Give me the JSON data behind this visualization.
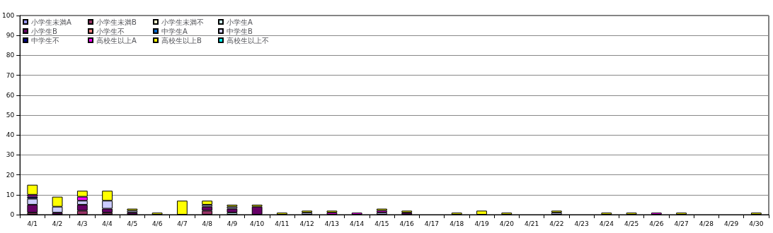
{
  "chart_data": {
    "type": "bar",
    "stacked": true,
    "categories": [
      "4/1",
      "4/2",
      "4/3",
      "4/4",
      "4/5",
      "4/6",
      "4/7",
      "4/8",
      "4/9",
      "4/10",
      "4/11",
      "4/12",
      "4/13",
      "4/14",
      "4/15",
      "4/16",
      "4/17",
      "4/18",
      "4/19",
      "4/20",
      "4/21",
      "4/22",
      "4/23",
      "4/24",
      "4/25",
      "4/26",
      "4/27",
      "4/28",
      "4/29",
      "4/30"
    ],
    "ylim": [
      0,
      100
    ],
    "yticks": [
      0,
      10,
      20,
      30,
      40,
      50,
      60,
      70,
      80,
      90,
      100
    ],
    "grid": "y",
    "legend": "top left",
    "series": [
      {
        "name": "小学生未満A",
        "color": "#9999ff",
        "values": [
          0,
          0,
          0,
          0,
          0,
          0,
          0,
          0,
          0,
          0,
          0,
          0,
          0,
          0,
          0,
          0,
          0,
          0,
          0,
          0,
          0,
          0,
          0,
          0,
          0,
          0,
          0,
          0,
          0,
          0
        ]
      },
      {
        "name": "小学生未満B",
        "color": "#993366",
        "values": [
          1,
          0,
          2,
          1,
          0,
          0,
          0,
          2,
          0,
          0,
          0,
          0,
          0,
          0,
          0,
          0,
          0,
          0,
          0,
          0,
          0,
          0,
          0,
          0,
          0,
          0,
          0,
          0,
          0,
          0
        ]
      },
      {
        "name": "小学生未満不",
        "color": "#ffffcc",
        "values": [
          0,
          0,
          0,
          0,
          0,
          0,
          0,
          0,
          0,
          0,
          0,
          0,
          0,
          0,
          0,
          0,
          0,
          0,
          0,
          0,
          0,
          0,
          0,
          0,
          0,
          0,
          0,
          0,
          0,
          0
        ]
      },
      {
        "name": "小学生A",
        "color": "#ccffff",
        "values": [
          0,
          0,
          0,
          0,
          0,
          0,
          0,
          0,
          1,
          0,
          0,
          0,
          0,
          0,
          0,
          0,
          0,
          0,
          0,
          0,
          0,
          0,
          0,
          0,
          0,
          0,
          0,
          0,
          0,
          0
        ]
      },
      {
        "name": "小学生B",
        "color": "#660066",
        "values": [
          4,
          1,
          3,
          2,
          1,
          0,
          0,
          2,
          2,
          4,
          0,
          0,
          0,
          0,
          0,
          1,
          0,
          0,
          0,
          0,
          0,
          0,
          0,
          0,
          0,
          0,
          0,
          0,
          0,
          0
        ]
      },
      {
        "name": "小学生不",
        "color": "#ff8080",
        "values": [
          0,
          0,
          0,
          0,
          0,
          0,
          0,
          0,
          0,
          0,
          0,
          0,
          0,
          0,
          0,
          0,
          0,
          0,
          0,
          0,
          0,
          0,
          0,
          0,
          0,
          0,
          0,
          0,
          0,
          0
        ]
      },
      {
        "name": "中学生A",
        "color": "#0066cc",
        "values": [
          0,
          0,
          0,
          0,
          0,
          0,
          0,
          0,
          0,
          0,
          0,
          0,
          0,
          0,
          0,
          0,
          0,
          0,
          0,
          0,
          0,
          0,
          0,
          0,
          0,
          0,
          0,
          0,
          0,
          0
        ]
      },
      {
        "name": "中学生B",
        "color": "#ccccff",
        "values": [
          3,
          3,
          2,
          4,
          1,
          0,
          0,
          1,
          1,
          0,
          0,
          1,
          0,
          0,
          1,
          0,
          0,
          0,
          0,
          0,
          0,
          1,
          0,
          0,
          0,
          0,
          0,
          0,
          0,
          0
        ]
      },
      {
        "name": "中学生不",
        "color": "#000080",
        "values": [
          1,
          0,
          0,
          0,
          0,
          0,
          0,
          0,
          0,
          0,
          0,
          0,
          0,
          0,
          0,
          0,
          0,
          0,
          0,
          0,
          0,
          0,
          0,
          0,
          0,
          0,
          0,
          0,
          0,
          0
        ]
      },
      {
        "name": "高校生以上A",
        "color": "#ff00ff",
        "values": [
          1,
          0,
          2,
          0,
          0,
          0,
          0,
          0,
          0,
          0,
          0,
          0,
          1,
          1,
          1,
          0,
          0,
          0,
          0,
          0,
          0,
          0,
          0,
          0,
          0,
          1,
          0,
          0,
          0,
          0
        ]
      },
      {
        "name": "高校生以上B",
        "color": "#ffff00",
        "values": [
          5,
          5,
          3,
          5,
          1,
          1,
          7,
          2,
          1,
          1,
          1,
          1,
          1,
          0,
          1,
          1,
          0,
          1,
          2,
          1,
          0,
          1,
          0,
          1,
          1,
          0,
          1,
          0,
          0,
          1
        ]
      },
      {
        "name": "高校生以上不",
        "color": "#00ffff",
        "values": [
          0,
          0,
          0,
          0,
          0,
          0,
          0,
          0,
          0,
          0,
          0,
          0,
          0,
          0,
          0,
          0,
          0,
          0,
          0,
          0,
          0,
          0,
          0,
          0,
          0,
          0,
          0,
          0,
          0,
          0
        ]
      }
    ]
  }
}
